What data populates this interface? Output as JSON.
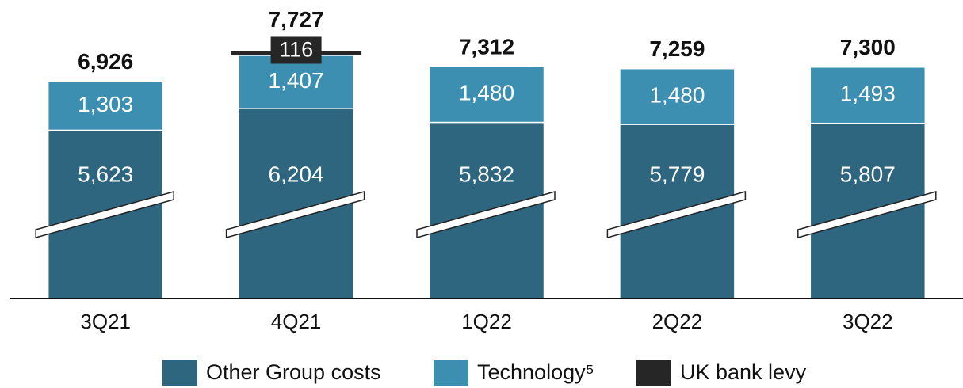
{
  "chart_data": {
    "type": "stacked-bar",
    "categories": [
      "3Q21",
      "4Q21",
      "1Q22",
      "2Q22",
      "3Q22"
    ],
    "series": [
      {
        "name": "Other Group costs",
        "color": "#2e6680",
        "values": [
          5623,
          6204,
          5832,
          5779,
          5807
        ],
        "value_labels": [
          "5,623",
          "6,204",
          "5,832",
          "5,779",
          "5,807"
        ]
      },
      {
        "name": "Technology⁵",
        "color": "#3d8fb2",
        "values": [
          1303,
          1407,
          1480,
          1480,
          1493
        ],
        "value_labels": [
          "1,303",
          "1,407",
          "1,480",
          "1,480",
          "1,493"
        ]
      },
      {
        "name": "UK bank levy",
        "color": "#262626",
        "values": [
          null,
          116,
          null,
          null,
          null
        ],
        "value_labels": [
          null,
          "116",
          null,
          null,
          null
        ]
      }
    ],
    "totals": [
      6926,
      7727,
      7312,
      7259,
      7300
    ],
    "total_labels": [
      "6,926",
      "7,727",
      "7,312",
      "7,259",
      "7,300"
    ],
    "ylim": [
      1150,
      7800
    ],
    "axis_break": true
  }
}
